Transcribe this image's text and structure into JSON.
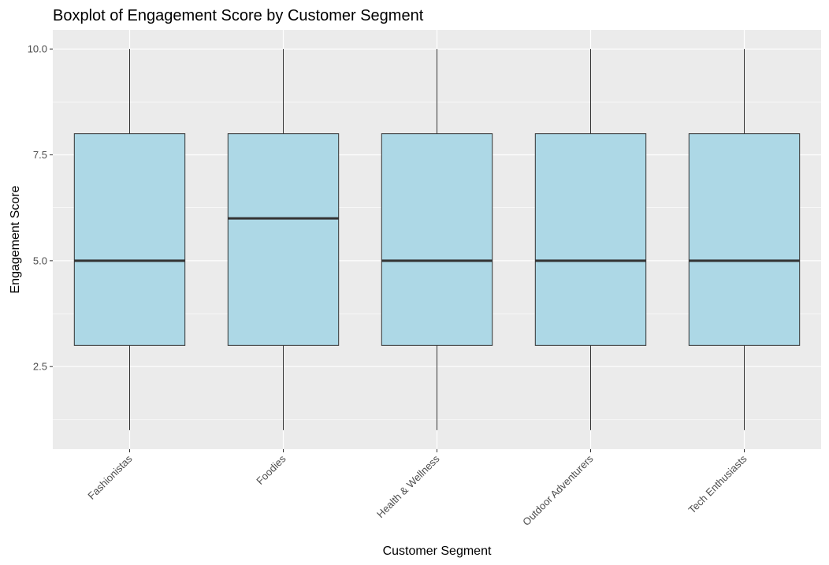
{
  "chart_data": {
    "type": "boxplot",
    "title": "Boxplot of Engagement Score by Customer Segment",
    "xlabel": "Customer Segment",
    "ylabel": "Engagement Score",
    "categories": [
      "Fashionistas",
      "Foodies",
      "Health & Wellness",
      "Outdoor Adventurers",
      "Tech Enthusiasts"
    ],
    "boxes": [
      {
        "category": "Fashionistas",
        "min": 1,
        "q1": 3,
        "median": 5,
        "q3": 8,
        "max": 10
      },
      {
        "category": "Foodies",
        "min": 1,
        "q1": 3,
        "median": 6,
        "q3": 8,
        "max": 10
      },
      {
        "category": "Health & Wellness",
        "min": 1,
        "q1": 3,
        "median": 5,
        "q3": 8,
        "max": 10
      },
      {
        "category": "Outdoor Adventurers",
        "min": 1,
        "q1": 3,
        "median": 5,
        "q3": 8,
        "max": 10
      },
      {
        "category": "Tech Enthusiasts",
        "min": 1,
        "q1": 3,
        "median": 5,
        "q3": 8,
        "max": 10
      }
    ],
    "y_ticks": [
      2.5,
      5.0,
      7.5,
      10.0
    ],
    "y_tick_labels": [
      "2.5",
      "5.0",
      "7.5",
      "10.0"
    ],
    "ylim": [
      0.55,
      10.45
    ],
    "grid": true,
    "x_tick_rotation": 45,
    "colors": {
      "box_fill": "#add8e6",
      "box_outline": "#333333",
      "panel_background": "#ebebeb",
      "grid": "#ffffff"
    }
  }
}
